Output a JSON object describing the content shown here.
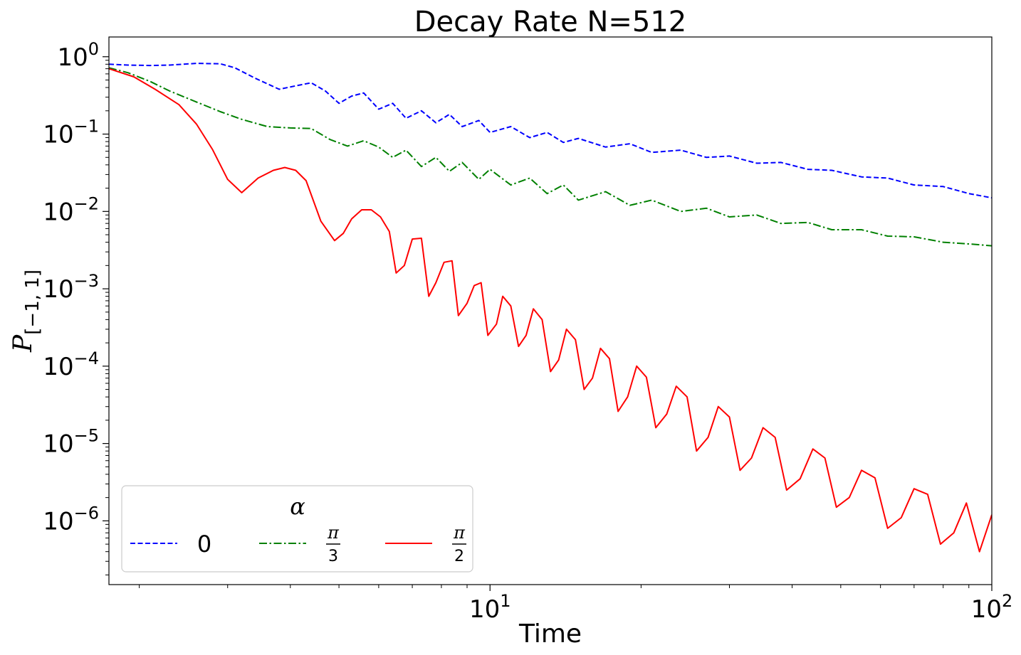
{
  "chart_data": {
    "type": "line",
    "title": "Decay Rate N=512",
    "xlabel": "Time",
    "ylabel": {
      "base": "P",
      "subscript": "[−1, 1]"
    },
    "xscale": "log",
    "yscale": "log",
    "xlim": [
      1.74,
      100
    ],
    "ylim": [
      1.5e-07,
      1.8
    ],
    "xticks": [
      {
        "base": "10",
        "exp": "1",
        "value": 10
      },
      {
        "base": "10",
        "exp": "2",
        "value": 100
      }
    ],
    "yticks": [
      {
        "base": "10",
        "exp": "0",
        "value": 1
      },
      {
        "base": "10",
        "exp": "−1",
        "value": 0.1
      },
      {
        "base": "10",
        "exp": "−2",
        "value": 0.01
      },
      {
        "base": "10",
        "exp": "−3",
        "value": 0.001
      },
      {
        "base": "10",
        "exp": "−4",
        "value": 0.0001
      },
      {
        "base": "10",
        "exp": "−5",
        "value": 1e-05
      },
      {
        "base": "10",
        "exp": "−6",
        "value": 1e-06
      }
    ],
    "grid": false,
    "legend": {
      "title": "α",
      "placement": "lower-left",
      "columns": 3
    },
    "series": [
      {
        "name": "0",
        "name_kind": "plain",
        "color": "#0000ff",
        "dash": "dashed",
        "x": [
          1.74,
          1.9,
          2.1,
          2.3,
          2.6,
          2.9,
          3.1,
          3.4,
          3.8,
          4.1,
          4.4,
          4.7,
          5.0,
          5.3,
          5.6,
          6.0,
          6.4,
          6.8,
          7.3,
          7.8,
          8.3,
          8.8,
          9.5,
          10,
          11,
          12,
          13,
          14,
          15,
          17,
          19,
          21,
          24,
          27,
          30,
          34,
          38,
          43,
          48,
          55,
          62,
          70,
          80,
          90,
          100
        ],
        "y": [
          0.8,
          0.78,
          0.77,
          0.78,
          0.82,
          0.81,
          0.72,
          0.53,
          0.38,
          0.42,
          0.46,
          0.36,
          0.25,
          0.31,
          0.34,
          0.21,
          0.25,
          0.16,
          0.2,
          0.14,
          0.18,
          0.125,
          0.15,
          0.105,
          0.125,
          0.09,
          0.105,
          0.078,
          0.088,
          0.068,
          0.075,
          0.058,
          0.062,
          0.05,
          0.052,
          0.042,
          0.043,
          0.035,
          0.034,
          0.028,
          0.027,
          0.022,
          0.021,
          0.017,
          0.015
        ]
      },
      {
        "name": "π/3",
        "name_kind": "fraction",
        "name_num": "π",
        "name_den": "3",
        "color": "#008000",
        "dash": "dashdot",
        "x": [
          1.74,
          1.9,
          2.1,
          2.3,
          2.6,
          2.9,
          3.2,
          3.6,
          4.0,
          4.4,
          4.8,
          5.2,
          5.6,
          6.0,
          6.4,
          6.8,
          7.3,
          7.8,
          8.3,
          8.8,
          9.5,
          10,
          11,
          12,
          13,
          14,
          15,
          17,
          19,
          21,
          24,
          27,
          30,
          34,
          38,
          43,
          48,
          55,
          62,
          70,
          80,
          90,
          100
        ],
        "y": [
          0.72,
          0.62,
          0.48,
          0.36,
          0.26,
          0.195,
          0.155,
          0.125,
          0.12,
          0.118,
          0.085,
          0.07,
          0.082,
          0.068,
          0.05,
          0.062,
          0.038,
          0.05,
          0.033,
          0.043,
          0.026,
          0.035,
          0.022,
          0.027,
          0.017,
          0.022,
          0.014,
          0.018,
          0.012,
          0.014,
          0.01,
          0.011,
          0.0085,
          0.009,
          0.007,
          0.0072,
          0.0058,
          0.0058,
          0.0048,
          0.0047,
          0.004,
          0.0038,
          0.0036
        ]
      },
      {
        "name": "π/2",
        "name_kind": "fraction",
        "name_num": "π",
        "name_den": "2",
        "color": "#ff0000",
        "dash": "solid",
        "x": [
          1.74,
          1.95,
          2.15,
          2.4,
          2.6,
          2.8,
          3.0,
          3.2,
          3.45,
          3.7,
          3.9,
          4.1,
          4.3,
          4.6,
          4.9,
          5.1,
          5.3,
          5.55,
          5.8,
          6.05,
          6.3,
          6.5,
          6.75,
          7.0,
          7.3,
          7.55,
          7.8,
          8.1,
          8.4,
          8.65,
          9.0,
          9.3,
          9.6,
          9.9,
          10.3,
          10.6,
          11.0,
          11.4,
          11.8,
          12.2,
          12.7,
          13.2,
          13.7,
          14.2,
          14.8,
          15.4,
          16.0,
          16.6,
          17.3,
          18.0,
          18.8,
          19.6,
          20.5,
          21.4,
          22.5,
          23.5,
          24.7,
          25.8,
          27.2,
          28.5,
          30.0,
          31.5,
          33.2,
          35.0,
          37.0,
          39.0,
          41.5,
          44.0,
          46.5,
          49.0,
          52.0,
          55.0,
          58.5,
          62.0,
          66.0,
          70.0,
          74.5,
          79.0,
          84.0,
          89.0,
          94.5,
          100
        ],
        "y": [
          0.7,
          0.55,
          0.38,
          0.24,
          0.135,
          0.063,
          0.026,
          0.0175,
          0.027,
          0.034,
          0.037,
          0.034,
          0.025,
          0.0075,
          0.0042,
          0.0052,
          0.008,
          0.0105,
          0.0105,
          0.0085,
          0.0055,
          0.0016,
          0.002,
          0.0044,
          0.0045,
          0.0008,
          0.0012,
          0.0022,
          0.0023,
          0.00045,
          0.00065,
          0.0011,
          0.0012,
          0.00025,
          0.00035,
          0.0008,
          0.0006,
          0.00018,
          0.00025,
          0.00055,
          0.0004,
          8.5e-05,
          0.00012,
          0.0003,
          0.00022,
          5e-05,
          7e-05,
          0.00017,
          0.000125,
          2.6e-05,
          4e-05,
          0.0001,
          7.2e-05,
          1.6e-05,
          2.4e-05,
          5.5e-05,
          4e-05,
          8e-06,
          1.2e-05,
          3e-05,
          2.2e-05,
          4.5e-06,
          6.5e-06,
          1.6e-05,
          1.2e-05,
          2.5e-06,
          3.5e-06,
          8.5e-06,
          6.5e-06,
          1.5e-06,
          2e-06,
          4.5e-06,
          3.6e-06,
          8e-07,
          1.1e-06,
          2.6e-06,
          2.2e-06,
          5e-07,
          7e-07,
          1.7e-06,
          4e-07,
          1.2e-06
        ]
      }
    ]
  }
}
